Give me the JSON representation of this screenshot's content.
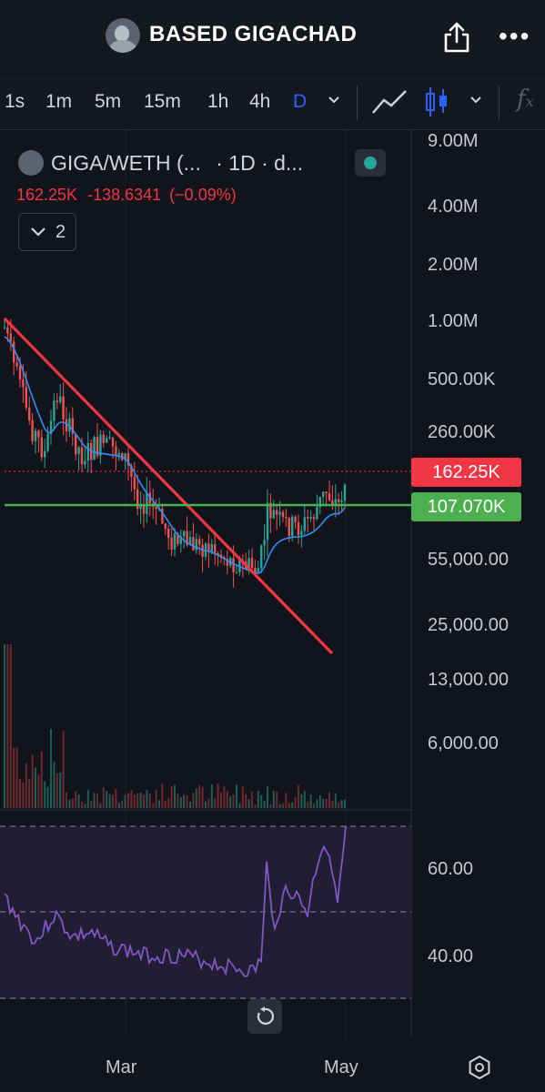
{
  "header": {
    "title": "BASED GIGACHAD",
    "share_icon": "share-icon",
    "more_icon": "more-icon"
  },
  "toolbar": {
    "timeframes": [
      "1s",
      "1m",
      "5m",
      "15m",
      "1h",
      "4h",
      "D"
    ],
    "active_timeframe": "D",
    "chart_style_icon": "line-chart-icon",
    "candles_icon": "candles-icon",
    "indicators_icon": "fx-icon"
  },
  "legend": {
    "symbol": "GIGA/WETH (...",
    "meta": "· 1D · d...",
    "price": "162.25K",
    "change": "-138.6341",
    "change_pct": "(−0.09%)",
    "collapsed_count": "2"
  },
  "price_axis": [
    "9.00M",
    "4.00M",
    "2.00M",
    "1.00M",
    "500.00K",
    "260.00K",
    "55,000.00",
    "25,000.00",
    "13,000.00",
    "6,000.00"
  ],
  "price_tags": {
    "last": "162.25K",
    "last_color": "#f23645",
    "level": "107.070K",
    "level_color": "#4caf50"
  },
  "rsi_axis": [
    "60.00",
    "40.00"
  ],
  "time_axis": [
    "Mar",
    "May"
  ],
  "colors": {
    "up": "#26a69a",
    "down": "#ef5350",
    "ma": "#2f8df5",
    "trendline": "#f23645",
    "support": "#4caf50",
    "rsi": "#7e57c2",
    "active": "#2962ff"
  }
}
